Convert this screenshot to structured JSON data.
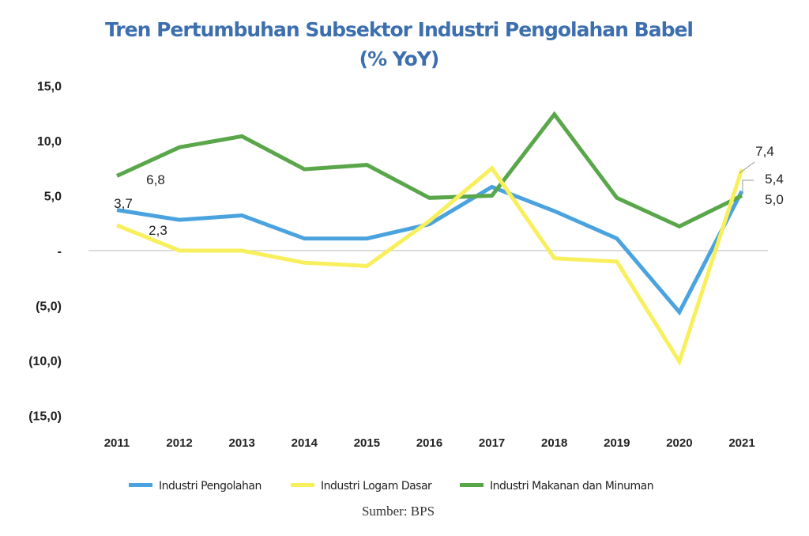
{
  "chart_data": {
    "type": "line",
    "title": "Tren Pertumbuhan Subsektor Industri Pengolahan Babel",
    "subtitle": "(% YoY)",
    "xlabel": "",
    "ylabel": "",
    "categories": [
      "2011",
      "2012",
      "2013",
      "2014",
      "2015",
      "2016",
      "2017",
      "2018",
      "2019",
      "2020",
      "2021"
    ],
    "ylim": [
      -15,
      15
    ],
    "yticks": [
      15,
      10,
      5,
      0,
      -5,
      -10,
      -15
    ],
    "ytick_labels": [
      "15,0",
      "10,0",
      "5,0",
      "-",
      "(5,0)",
      "(10,0)",
      "(15,0)"
    ],
    "grid": "zero-line only",
    "legend_position": "bottom",
    "series": [
      {
        "name": "Industri Pengolahan",
        "color": "#4aa3df",
        "values": [
          3.7,
          2.8,
          3.2,
          1.1,
          1.1,
          2.4,
          5.8,
          3.6,
          1.1,
          -5.6,
          5.4
        ]
      },
      {
        "name": "Industri Logam Dasar",
        "color": "#f8ef5c",
        "values": [
          2.3,
          0.0,
          0.0,
          -1.1,
          -1.4,
          2.7,
          7.5,
          -0.7,
          -1.0,
          -10.1,
          7.4
        ]
      },
      {
        "name": "Industri Makanan dan Minuman",
        "color": "#5aa64a",
        "values": [
          6.8,
          9.4,
          10.4,
          7.4,
          7.8,
          4.8,
          5.0,
          12.4,
          4.8,
          2.2,
          5.0
        ]
      }
    ],
    "annotations": [
      {
        "series": "Industri Makanan dan Minuman",
        "category": "2011",
        "text": "6,8"
      },
      {
        "series": "Industri Pengolahan",
        "category": "2011",
        "text": "3,7"
      },
      {
        "series": "Industri Logam Dasar",
        "category": "2011",
        "text": "2,3"
      },
      {
        "series": "Industri Logam Dasar",
        "category": "2021",
        "text": "7,4"
      },
      {
        "series": "Industri Pengolahan",
        "category": "2021",
        "text": "5,4"
      },
      {
        "series": "Industri Makanan dan Minuman",
        "category": "2021",
        "text": "5,0"
      }
    ],
    "source": "Sumber: BPS"
  },
  "colors": {
    "title": "#3d6fae",
    "zero_line": "#c8c8c8",
    "text": "#222222"
  }
}
